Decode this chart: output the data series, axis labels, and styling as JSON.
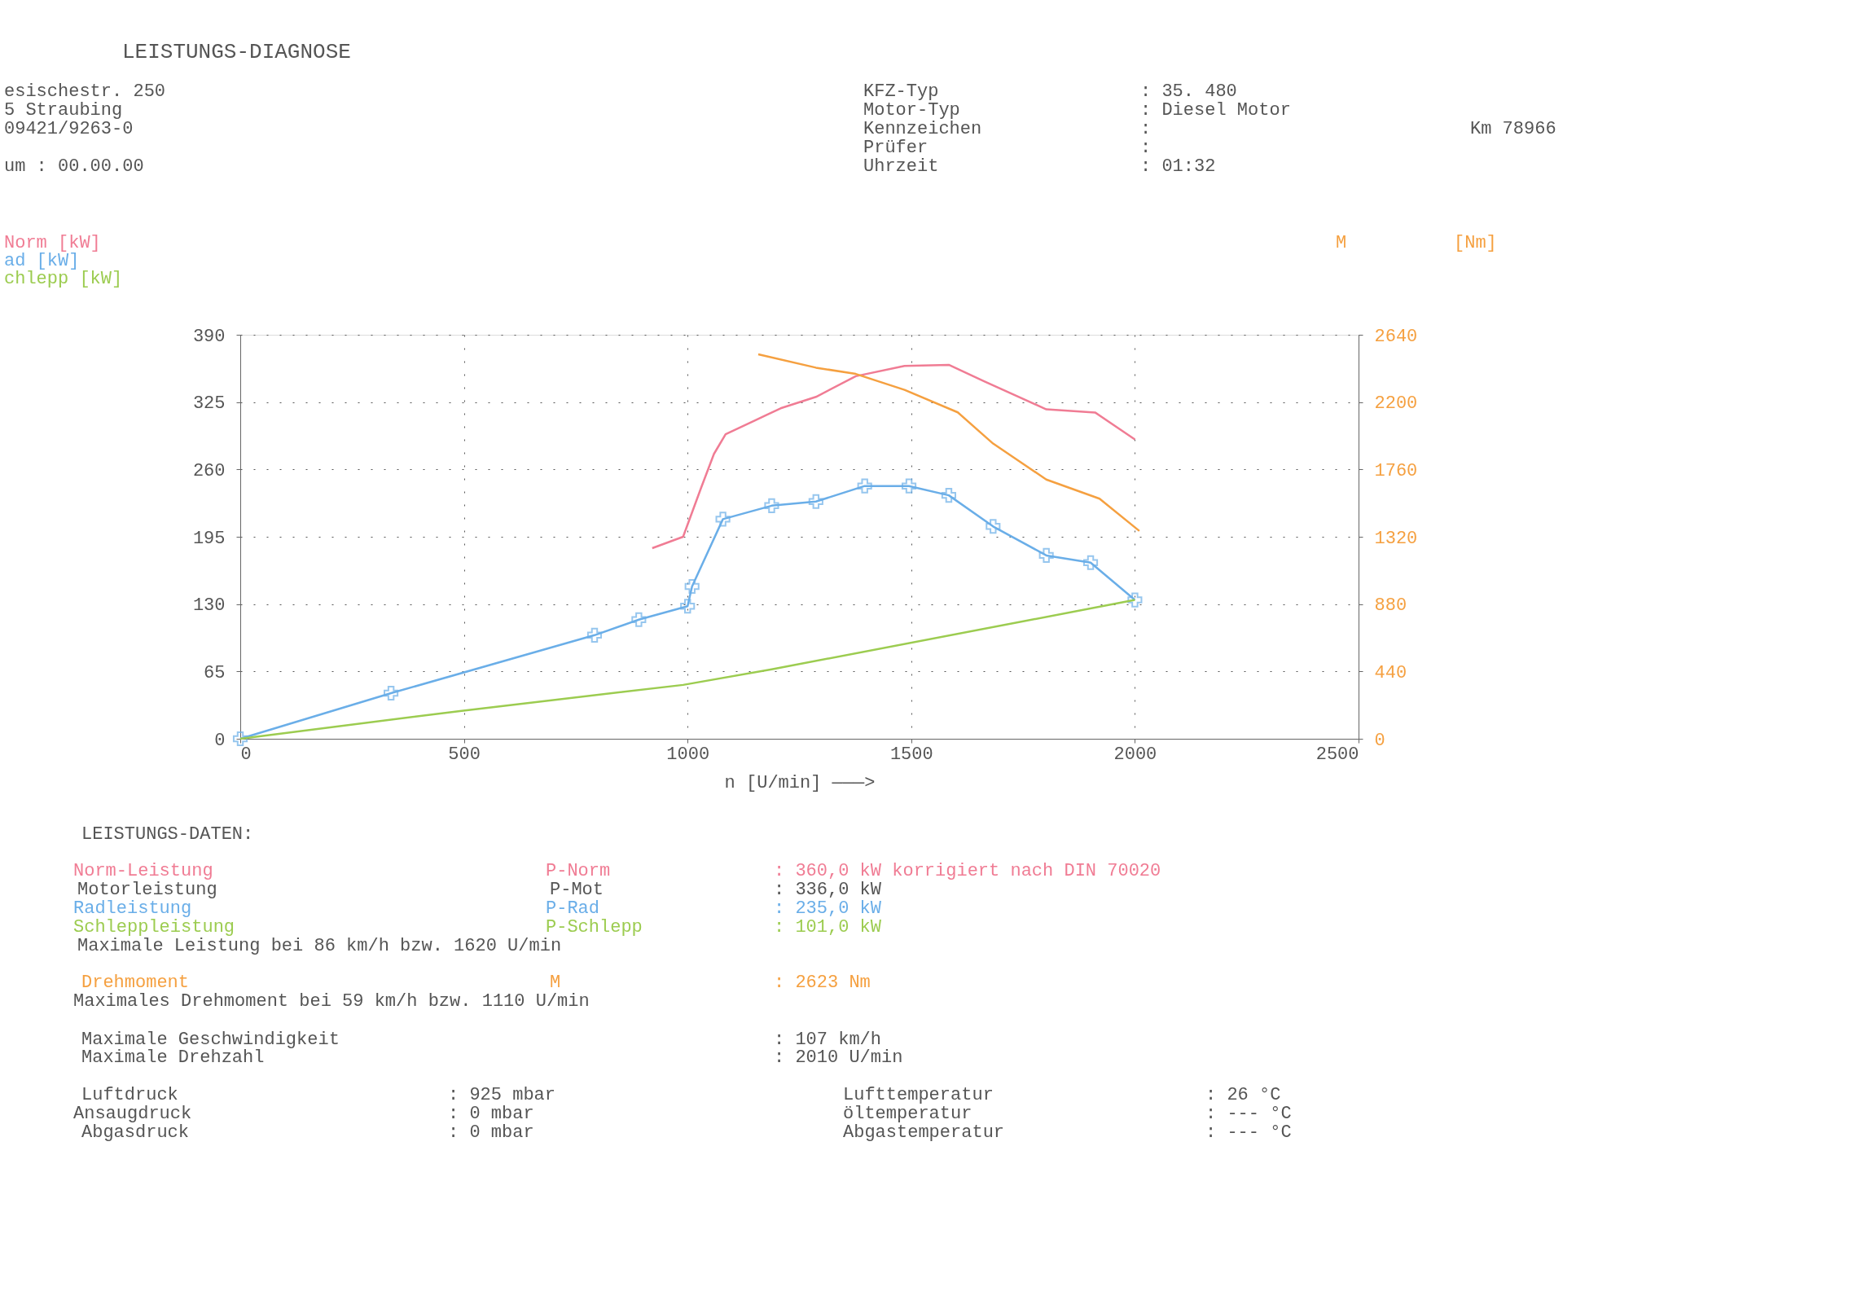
{
  "chart_data": {
    "type": "line",
    "title": "LEISTUNGS-DIAGNOSE",
    "xlabel": "n [U/min] ———>",
    "y2label": "[Nm]",
    "xlim": [
      0,
      2500
    ],
    "xticks": [
      0,
      500,
      1000,
      1500,
      2000,
      2500
    ],
    "ylim": [
      0,
      390
    ],
    "yticks": [
      0,
      65,
      130,
      195,
      260,
      325,
      390
    ],
    "y2lim": [
      0,
      2640
    ],
    "y2ticks": [
      0,
      440,
      880,
      1320,
      1760,
      2200,
      2640
    ],
    "grid": true,
    "legend": "top left",
    "line_style": "solid",
    "series": [
      {
        "name": "Norm [kW]",
        "color": "#f07c94",
        "marker": "none",
        "x": [
          921,
          990,
          1030,
          1059,
          1085,
          1149,
          1208,
          1287,
          1376,
          1485,
          1584,
          1663,
          1802,
          1911,
          2000
        ],
        "values": [
          184,
          195,
          242,
          275,
          294,
          307,
          319,
          330,
          350,
          360,
          361,
          345,
          318,
          315,
          289
        ]
      },
      {
        "name": "ad [kW]",
        "color": "#6aaee8",
        "marker": "cross",
        "x": [
          0,
          337,
          792,
          891,
          1000,
          1010,
          1079,
          1188,
          1287,
          1396,
          1495,
          1584,
          1683,
          1802,
          1901,
          2000
        ],
        "values": [
          0,
          44,
          100,
          115,
          128,
          147,
          212,
          225,
          229,
          244,
          244,
          235,
          205,
          177,
          170,
          134
        ]
      },
      {
        "name": "chlepp [kW]",
        "color": "#9ccc50",
        "marker": "none",
        "x": [
          0,
          495,
          990,
          1188,
          2000
        ],
        "values": [
          0,
          27,
          52,
          67,
          134
        ]
      },
      {
        "name": "M",
        "color": "#f5a040",
        "marker": "none",
        "axis": "y2",
        "x": [
          1158,
          1287,
          1376,
          1485,
          1604,
          1683,
          1802,
          1921,
          2010
        ],
        "values": [
          2512,
          2425,
          2384,
          2280,
          2133,
          1929,
          1694,
          1569,
          1358
        ]
      }
    ],
    "annotations": [
      "esischestr. 250",
      "5 Straubing",
      "09421/9263-0",
      "um : 00.00.00",
      "KFZ-Typ",
      ": 35. 480",
      "Motor-Typ",
      ": Diesel Motor",
      "Kennzeichen",
      ":",
      "Km 78966",
      "Prüfer",
      ":",
      "Uhrzeit",
      ": 01:32",
      "LEISTUNGS-DATEN:",
      "Norm-Leistung",
      "P-Norm",
      ": 360,0 kW korrigiert nach DIN 70020",
      "Motorleistung",
      "P-Mot",
      ": 336,0 kW",
      "Radleistung",
      "P-Rad",
      ": 235,0 kW",
      "Schleppleistung",
      "P-Schlepp",
      ": 101,0 kW",
      "Maximale Leistung bei 86 km/h bzw. 1620 U/min",
      "Drehmoment",
      "M",
      ": 2623 Nm",
      "Maximales Drehmoment bei 59 km/h bzw. 1110 U/min",
      "Maximale Geschwindigkeit",
      ": 107 km/h",
      "Maximale Drehzahl",
      ": 2010 U/min",
      "Luftdruck",
      ": 925 mbar",
      "Lufttemperatur",
      ": 26 °C",
      "Ansaugdruck",
      ": 0 mbar",
      "öltemperatur",
      ": --- °C",
      "Abgasdruck",
      ": 0 mbar",
      "Abgastemperatur",
      ": --- °C"
    ]
  }
}
